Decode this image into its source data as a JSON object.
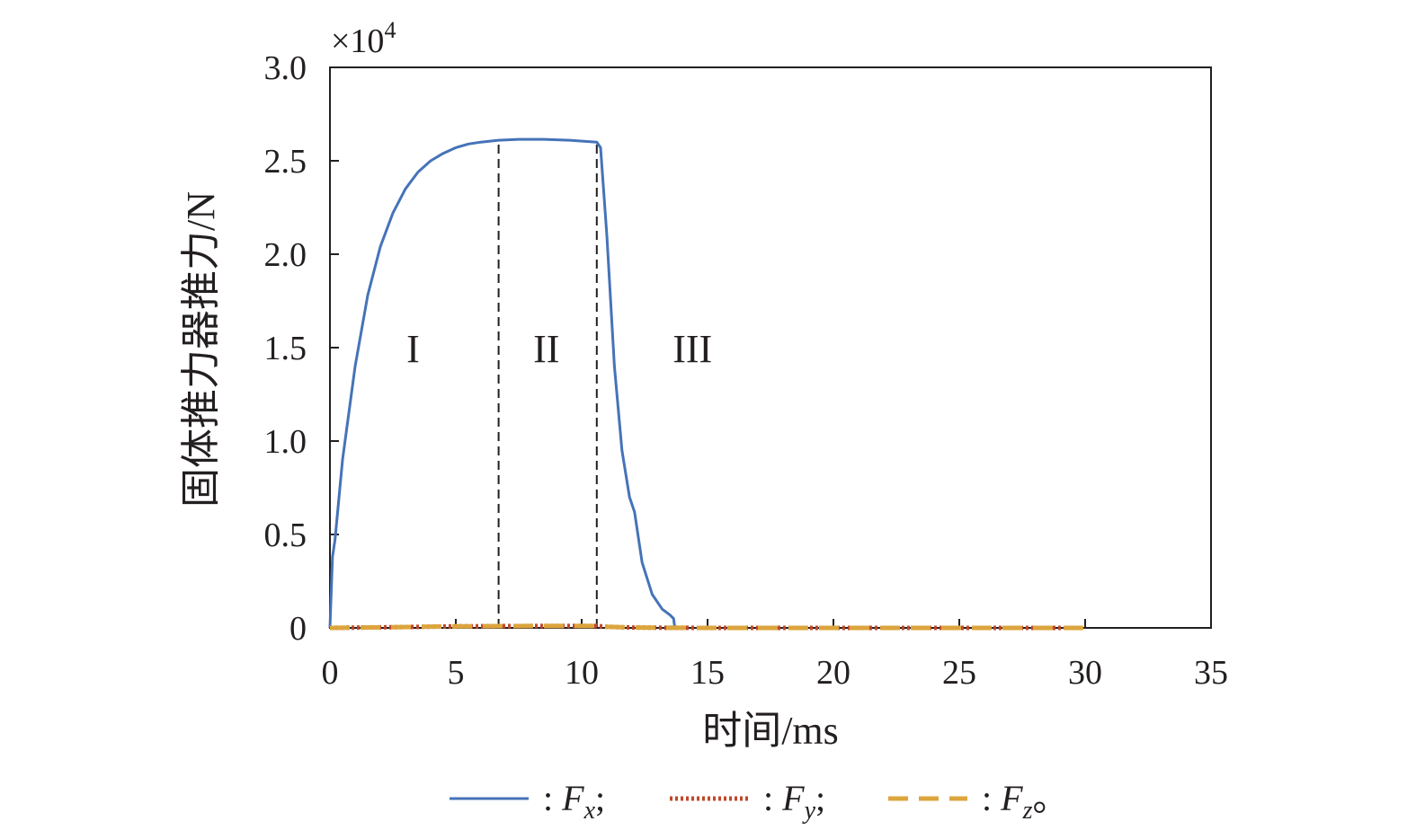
{
  "chart_data": {
    "type": "line",
    "xlabel": "时间/ms",
    "ylabel": "固体推力器推力/N",
    "y_multiplier": "×10",
    "y_multiplier_exp": "4",
    "xlim": [
      0,
      35
    ],
    "ylim": [
      0,
      3.0
    ],
    "xticks": [
      0,
      5,
      10,
      15,
      20,
      25,
      30,
      35
    ],
    "xtick_labels": [
      "0",
      "5",
      "10",
      "15",
      "20",
      "25",
      "30",
      "35"
    ],
    "yticks": [
      0,
      0.5,
      1.0,
      1.5,
      2.0,
      2.5,
      3.0
    ],
    "ytick_labels": [
      "0",
      "0.5",
      "1.0",
      "1.5",
      "2.0",
      "2.5",
      "3.0"
    ],
    "grid": false,
    "legend_position": "bottom",
    "series": [
      {
        "key": "Fx",
        "legend_prefix": ": ",
        "legend_main": "F",
        "legend_sub": "x",
        "legend_suffix": ";",
        "color": "#4573b8",
        "style": "solid",
        "x": [
          0,
          0.1,
          0.2,
          0.5,
          1,
          1.5,
          2,
          2.5,
          3,
          3.5,
          4,
          4.5,
          5,
          5.5,
          6,
          6.7,
          7.5,
          8.5,
          9.5,
          10.6,
          10.75,
          11.0,
          11.3,
          11.6,
          11.9,
          12.1,
          12.4,
          12.8,
          13.2,
          13.5,
          13.65,
          13.7
        ],
        "y": [
          0,
          0.38,
          0.47,
          0.9,
          1.4,
          1.78,
          2.04,
          2.22,
          2.35,
          2.44,
          2.5,
          2.54,
          2.57,
          2.59,
          2.6,
          2.61,
          2.615,
          2.615,
          2.61,
          2.6,
          2.57,
          2.1,
          1.4,
          0.95,
          0.7,
          0.62,
          0.35,
          0.18,
          0.1,
          0.07,
          0.05,
          0.0
        ]
      },
      {
        "key": "Fy",
        "legend_prefix": ": ",
        "legend_main": "F",
        "legend_sub": "y",
        "legend_suffix": ";",
        "color": "#c0482b",
        "style": "dotted",
        "x": [
          0,
          2,
          5,
          8,
          10.6,
          11,
          12,
          13,
          15,
          20,
          25,
          30
        ],
        "y": [
          0.0,
          0.003,
          0.008,
          0.01,
          0.01,
          0.006,
          0.002,
          0.001,
          0,
          0,
          0,
          0
        ]
      },
      {
        "key": "Fz",
        "legend_prefix": ": ",
        "legend_main": "F",
        "legend_sub": "z",
        "legend_suffix": "。",
        "color": "#dca53d",
        "style": "dashed",
        "x": [
          0,
          2,
          5,
          8,
          10.6,
          11,
          12,
          13,
          15,
          20,
          25,
          30
        ],
        "y": [
          0.0,
          0.003,
          0.008,
          0.01,
          0.01,
          0.006,
          0.002,
          0.001,
          0,
          0,
          0,
          0
        ]
      }
    ],
    "dividers": [
      {
        "x": 6.7,
        "y_top": 2.61,
        "color": "#231f20",
        "style": "dashed"
      },
      {
        "x": 10.6,
        "y_top": 2.6,
        "color": "#231f20",
        "style": "dashed"
      }
    ],
    "annotations": [
      {
        "text": "I",
        "x": 3.3,
        "y": 1.5
      },
      {
        "text": "II",
        "x": 8.6,
        "y": 1.5
      },
      {
        "text": "III",
        "x": 14.4,
        "y": 1.5
      }
    ]
  }
}
